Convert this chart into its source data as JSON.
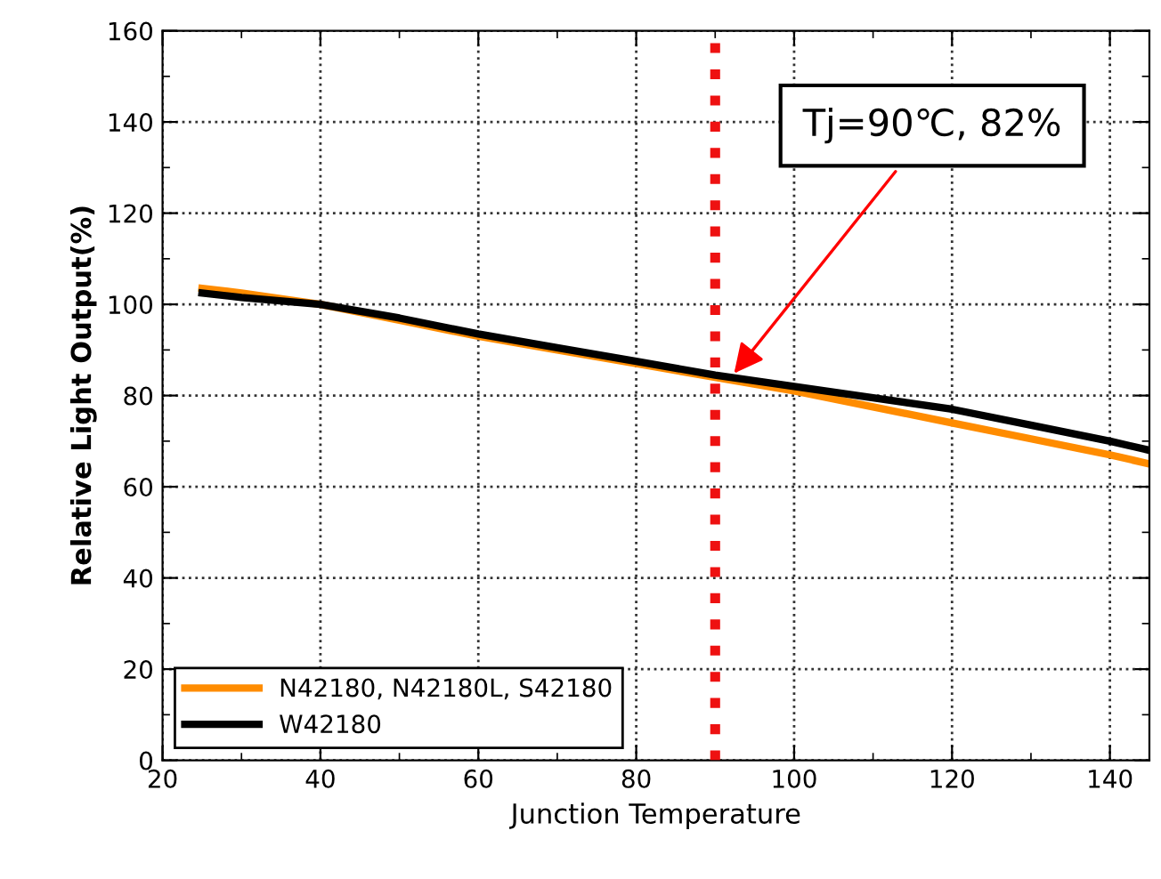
{
  "chart_data": {
    "type": "line",
    "xlabel": "Junction Temperature",
    "ylabel": "Relative Light Output(%)",
    "xlim": [
      20,
      145
    ],
    "xticks": [
      20,
      40,
      60,
      80,
      100,
      120,
      140
    ],
    "ylim": [
      0,
      160
    ],
    "yticks": [
      0,
      20,
      40,
      60,
      80,
      100,
      120,
      140,
      160
    ],
    "grid": true,
    "legend": "bottom left",
    "line_style": "solid",
    "marker": "none",
    "series": [
      {
        "name": "N42180, N42180L, S42180",
        "color": "#ff8c00",
        "x": [
          25,
          30,
          40,
          50,
          60,
          70,
          80,
          90,
          100,
          110,
          120,
          130,
          140,
          145
        ],
        "values": [
          103.5,
          102.5,
          100,
          96.5,
          93,
          90,
          87,
          84,
          81,
          77.5,
          74,
          70.5,
          67,
          65
        ]
      },
      {
        "name": "W42180",
        "color": "#000000",
        "x": [
          25,
          30,
          40,
          50,
          60,
          70,
          80,
          90,
          100,
          110,
          120,
          130,
          140,
          145
        ],
        "values": [
          102.5,
          101.5,
          100,
          97,
          93.5,
          90.5,
          87.5,
          84.5,
          82,
          79.5,
          77,
          73.5,
          70,
          68
        ]
      }
    ],
    "ref_lines": [
      {
        "axis": "x",
        "value": 90,
        "label": null,
        "color": "#ee1111",
        "line_style": "dotted"
      }
    ],
    "annotations": [
      {
        "text": "Tj=90℃, 82%",
        "x": 92,
        "y": 84
      }
    ]
  }
}
